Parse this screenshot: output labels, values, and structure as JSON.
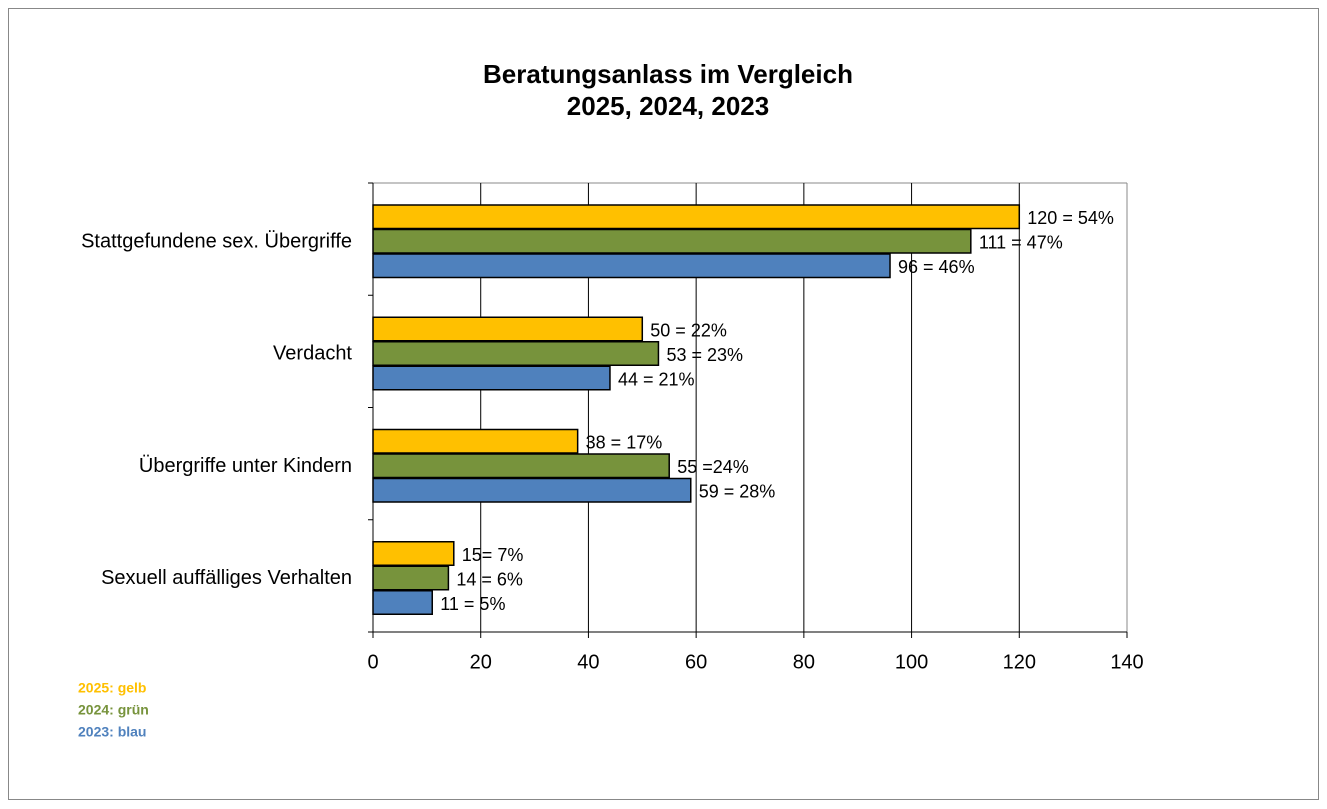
{
  "chart_data": {
    "type": "hbar",
    "title": [
      "Beratungsanlass im Vergleich",
      "2025, 2024, 2023"
    ],
    "categories": [
      "Stattgefundene sex. Übergriffe",
      "Verdacht",
      "Übergriffe unter Kindern",
      "Sexuell auffälliges Verhalten"
    ],
    "series": [
      {
        "name": "2025: gelb",
        "color": "#ffc000",
        "values": [
          120,
          50,
          38,
          15
        ],
        "value_labels": [
          "120 = 54%",
          "50 = 22%",
          "38 = 17%",
          "15= 7%"
        ]
      },
      {
        "name": "2024: grün",
        "color": "#77933c",
        "values": [
          111,
          53,
          55,
          14
        ],
        "value_labels": [
          "111 = 47%",
          "53 = 23%",
          "55 =24%",
          "14 = 6%"
        ]
      },
      {
        "name": "2023: blau",
        "color": "#4f81bd",
        "values": [
          96,
          44,
          59,
          11
        ],
        "value_labels": [
          "96 = 46%",
          "44 = 21%",
          "59 = 28%",
          "11 = 5%"
        ]
      }
    ],
    "xlim": [
      0,
      140
    ],
    "xticks": [
      0,
      20,
      40,
      60,
      80,
      100,
      120,
      140
    ],
    "grid": true
  }
}
